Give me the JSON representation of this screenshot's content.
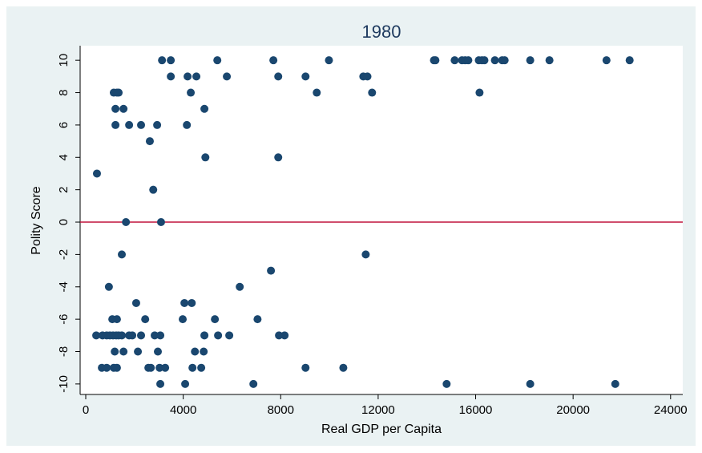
{
  "chart_data": {
    "type": "scatter",
    "title": "1980",
    "xlabel": "Real GDP per Capita",
    "ylabel": "Polity Score",
    "color": "#1a476f",
    "hline": 0,
    "hline_color": "#c0143c",
    "xlim": [
      -230,
      24500
    ],
    "ylim": [
      -10.65,
      10.9
    ],
    "xticks": [
      0,
      4000,
      8000,
      12000,
      16000,
      20000,
      24000
    ],
    "yticks": [
      -10,
      -8,
      -6,
      -4,
      -2,
      0,
      2,
      4,
      6,
      8,
      10
    ],
    "x": [
      3130,
      3490,
      5400,
      7700,
      9980,
      14290,
      14350,
      15140,
      15440,
      15570,
      15700,
      16130,
      16260,
      16360,
      16790,
      17090,
      17190,
      18240,
      19030,
      21370,
      22320,
      3490,
      4180,
      4540,
      5790,
      7900,
      9020,
      11390,
      11560,
      1150,
      1280,
      1350,
      4310,
      9480,
      11750,
      16160,
      1220,
      1550,
      4870,
      1220,
      1780,
      2270,
      2930,
      4150,
      2630,
      4910,
      7900,
      460,
      2770,
      1650,
      3090,
      1480,
      11490,
      7600,
      950,
      6320,
      2070,
      4050,
      4350,
      1090,
      1280,
      2440,
      3980,
      5300,
      7050,
      430,
      690,
      860,
      990,
      1120,
      1250,
      1350,
      1480,
      1780,
      1910,
      2270,
      2830,
      3060,
      4870,
      5430,
      5890,
      7930,
      8160,
      1190,
      1550,
      2140,
      2960,
      4480,
      4840,
      660,
      860,
      1150,
      1280,
      2570,
      2670,
      3030,
      3260,
      4380,
      4740,
      9020,
      10570,
      3060,
      4080,
      6880,
      14810,
      18240,
      21730
    ],
    "y": [
      10,
      10,
      10,
      10,
      10,
      10,
      10,
      10,
      10,
      10,
      10,
      10,
      10,
      10,
      10,
      10,
      10,
      10,
      10,
      10,
      10,
      9,
      9,
      9,
      9,
      9,
      9,
      9,
      9,
      8,
      8,
      8,
      8,
      8,
      8,
      8,
      7,
      7,
      7,
      6,
      6,
      6,
      6,
      6,
      5,
      4,
      4,
      3,
      2,
      0,
      0,
      -2,
      -2,
      -3,
      -4,
      -4,
      -5,
      -5,
      -5,
      -6,
      -6,
      -6,
      -6,
      -6,
      -6,
      -7,
      -7,
      -7,
      -7,
      -7,
      -7,
      -7,
      -7,
      -7,
      -7,
      -7,
      -7,
      -7,
      -7,
      -7,
      -7,
      -7,
      -7,
      -8,
      -8,
      -8,
      -8,
      -8,
      -8,
      -9,
      -9,
      -9,
      -9,
      -9,
      -9,
      -9,
      -9,
      -9,
      -9,
      -9,
      -9,
      -10,
      -10,
      -10,
      -10,
      -10,
      -10
    ]
  }
}
